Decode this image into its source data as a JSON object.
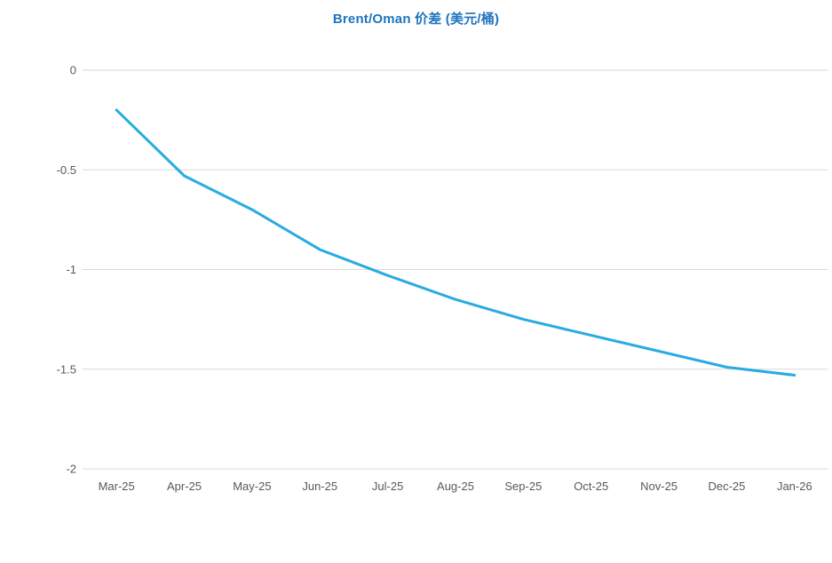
{
  "chart_data": {
    "type": "line",
    "title": "Brent/Oman 价差 (美元/桶)",
    "categories": [
      "Mar-25",
      "Apr-25",
      "May-25",
      "Jun-25",
      "Jul-25",
      "Aug-25",
      "Sep-25",
      "Oct-25",
      "Nov-25",
      "Dec-25",
      "Jan-26"
    ],
    "values": [
      -0.2,
      -0.53,
      -0.7,
      -0.9,
      -1.03,
      -1.15,
      -1.25,
      -1.33,
      -1.41,
      -1.49,
      -1.53
    ],
    "xlabel": "",
    "ylabel": "",
    "ylim": [
      -2,
      0
    ],
    "yticks": [
      0,
      -0.5,
      -1,
      -1.5,
      -2
    ],
    "ytick_labels": [
      "0",
      "-0.5",
      "-1",
      "-1.5",
      "-2"
    ],
    "grid": "horizontal",
    "legend": "none",
    "colors": {
      "line": "#29ABE2",
      "title": "#1E73BE",
      "axis_text": "#595959",
      "gridline": "#D9D9D9",
      "background": "#FFFFFF"
    }
  }
}
